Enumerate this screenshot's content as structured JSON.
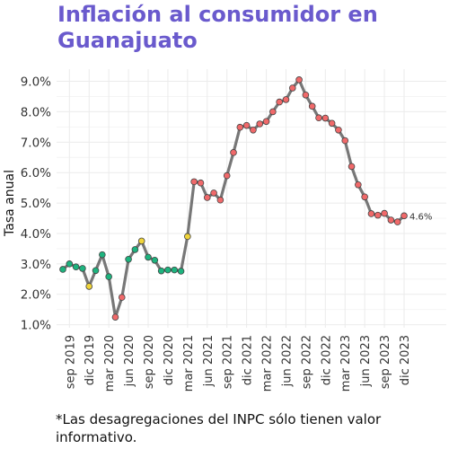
{
  "title": "Inflación al consumidor en Guanajuato",
  "caption": "*Las desagregaciones del INPC sólo tienen valor informativo.",
  "colors": {
    "title": "#6a5acd",
    "line": "#777777",
    "low": "#1db37e",
    "mid": "#f0d43a",
    "high": "#f0696a",
    "grid": "#ebebeb"
  },
  "chart_data": {
    "type": "line",
    "title": "Inflación al consumidor en Guanajuato",
    "xlabel": "",
    "ylabel": "Tasa anual",
    "ylim": [
      0.9,
      9.4
    ],
    "yticks": [
      "1.0%",
      "2.0%",
      "3.0%",
      "4.0%",
      "5.0%",
      "6.0%",
      "7.0%",
      "8.0%",
      "9.0%"
    ],
    "xtick_labels": [
      "sep 2019",
      "dic 2019",
      "mar 2020",
      "jun 2020",
      "sep 2020",
      "dic 2020",
      "mar 2021",
      "jun 2021",
      "sep 2021",
      "dic 2021",
      "mar 2022",
      "jun 2022",
      "sep 2022",
      "dic 2022",
      "mar 2023",
      "jun 2023",
      "sep 2023",
      "dic 2023"
    ],
    "xtick_index": [
      1,
      4,
      7,
      10,
      13,
      16,
      19,
      22,
      25,
      28,
      31,
      34,
      37,
      40,
      43,
      46,
      49,
      52
    ],
    "grid": true,
    "legend": "none",
    "last_label": "4.6%",
    "series": [
      {
        "x": [
          "2019-08",
          "2019-09",
          "2019-10",
          "2019-11",
          "2019-12",
          "2020-01",
          "2020-02",
          "2020-03",
          "2020-04",
          "2020-05",
          "2020-06",
          "2020-07",
          "2020-08",
          "2020-09",
          "2020-10",
          "2020-11",
          "2020-12",
          "2021-01",
          "2021-02",
          "2021-03",
          "2021-04",
          "2021-05",
          "2021-06",
          "2021-07",
          "2021-08",
          "2021-09",
          "2021-10",
          "2021-11",
          "2021-12",
          "2022-01",
          "2022-02",
          "2022-03",
          "2022-04",
          "2022-05",
          "2022-06",
          "2022-07",
          "2022-08",
          "2022-09",
          "2022-10",
          "2022-11",
          "2022-12",
          "2023-01",
          "2023-02",
          "2023-03",
          "2023-04",
          "2023-05",
          "2023-06",
          "2023-07",
          "2023-08",
          "2023-09",
          "2023-10",
          "2023-11",
          "2023-12"
        ],
        "values": [
          2.82,
          3.0,
          2.9,
          2.85,
          2.26,
          2.78,
          3.3,
          2.58,
          1.25,
          1.9,
          3.15,
          3.47,
          3.75,
          3.22,
          3.12,
          2.77,
          2.8,
          2.8,
          2.76,
          3.9,
          5.7,
          5.66,
          5.18,
          5.33,
          5.1,
          5.9,
          6.66,
          7.49,
          7.55,
          7.4,
          7.6,
          7.68,
          8.0,
          8.32,
          8.4,
          8.78,
          9.05,
          8.55,
          8.18,
          7.8,
          7.79,
          7.62,
          7.4,
          7.05,
          6.2,
          5.6,
          5.2,
          4.65,
          4.6,
          4.66,
          4.44,
          4.38,
          4.58
        ],
        "status": [
          "low",
          "low",
          "low",
          "low",
          "mid",
          "low",
          "low",
          "low",
          "high",
          "high",
          "low",
          "low",
          "mid",
          "low",
          "low",
          "low",
          "low",
          "low",
          "low",
          "mid",
          "high",
          "high",
          "high",
          "high",
          "high",
          "high",
          "high",
          "high",
          "high",
          "high",
          "high",
          "high",
          "high",
          "high",
          "high",
          "high",
          "high",
          "high",
          "high",
          "high",
          "high",
          "high",
          "high",
          "high",
          "high",
          "high",
          "high",
          "high",
          "high",
          "high",
          "high",
          "high",
          "high"
        ]
      }
    ]
  }
}
